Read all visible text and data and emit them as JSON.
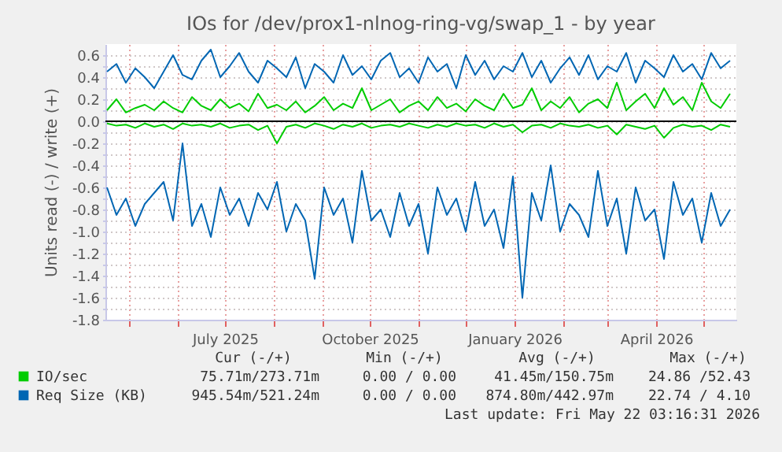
{
  "chart_data": {
    "type": "line",
    "title": "IOs for /dev/prox1-nlnog-ring-vg/swap_1 - by year",
    "ylabel": "Units read (-) / write (+)",
    "x": [
      "2025-04-17",
      "2025-04-23",
      "2025-04-29",
      "2025-05-05",
      "2025-05-11",
      "2025-05-17",
      "2025-05-23",
      "2025-05-29",
      "2025-06-04",
      "2025-06-10",
      "2025-06-16",
      "2025-06-22",
      "2025-06-28",
      "2025-07-04",
      "2025-07-10",
      "2025-07-16",
      "2025-07-22",
      "2025-07-28",
      "2025-08-03",
      "2025-08-09",
      "2025-08-15",
      "2025-08-21",
      "2025-08-27",
      "2025-09-02",
      "2025-09-08",
      "2025-09-14",
      "2025-09-20",
      "2025-09-26",
      "2025-10-02",
      "2025-10-08",
      "2025-10-14",
      "2025-10-20",
      "2025-10-26",
      "2025-11-01",
      "2025-11-07",
      "2025-11-13",
      "2025-11-19",
      "2025-11-25",
      "2025-12-01",
      "2025-12-07",
      "2025-12-13",
      "2025-12-19",
      "2025-12-25",
      "2025-12-31",
      "2026-01-06",
      "2026-01-12",
      "2026-01-18",
      "2026-01-24",
      "2026-01-30",
      "2026-02-05",
      "2026-02-11",
      "2026-02-17",
      "2026-02-23",
      "2026-03-01",
      "2026-03-07",
      "2026-03-13",
      "2026-03-19",
      "2026-03-25",
      "2026-03-31",
      "2026-04-06",
      "2026-04-12",
      "2026-04-18",
      "2026-04-24",
      "2026-04-30",
      "2026-05-06",
      "2026-05-12",
      "2026-05-18"
    ],
    "series": [
      {
        "name": "IO/sec",
        "color": "#00cc00",
        "values": [
          0.1,
          0.2,
          0.08,
          0.12,
          0.15,
          0.1,
          0.18,
          0.12,
          0.08,
          0.22,
          0.14,
          0.1,
          0.2,
          0.12,
          0.16,
          0.09,
          0.25,
          0.12,
          0.15,
          0.1,
          0.18,
          0.08,
          0.14,
          0.22,
          0.1,
          0.16,
          0.12,
          0.3,
          0.1,
          0.15,
          0.2,
          0.08,
          0.14,
          0.18,
          0.1,
          0.22,
          0.12,
          0.16,
          0.09,
          0.2,
          0.14,
          0.1,
          0.25,
          0.12,
          0.15,
          0.3,
          0.1,
          0.18,
          0.12,
          0.22,
          0.08,
          0.16,
          0.2,
          0.12,
          0.35,
          0.1,
          0.18,
          0.25,
          0.12,
          0.3,
          0.15,
          0.22,
          0.1,
          0.35,
          0.18,
          0.12,
          0.25
        ]
      },
      {
        "color": "#00cc00",
        "values": [
          -0.02,
          -0.04,
          -0.03,
          -0.06,
          -0.02,
          -0.05,
          -0.03,
          -0.07,
          -0.02,
          -0.04,
          -0.03,
          -0.05,
          -0.02,
          -0.06,
          -0.04,
          -0.03,
          -0.08,
          -0.04,
          -0.2,
          -0.05,
          -0.03,
          -0.06,
          -0.02,
          -0.04,
          -0.07,
          -0.03,
          -0.05,
          -0.02,
          -0.06,
          -0.04,
          -0.03,
          -0.05,
          -0.02,
          -0.04,
          -0.06,
          -0.03,
          -0.05,
          -0.02,
          -0.04,
          -0.03,
          -0.06,
          -0.02,
          -0.05,
          -0.03,
          -0.1,
          -0.04,
          -0.03,
          -0.06,
          -0.02,
          -0.04,
          -0.05,
          -0.03,
          -0.06,
          -0.04,
          -0.12,
          -0.03,
          -0.05,
          -0.07,
          -0.04,
          -0.15,
          -0.06,
          -0.03,
          -0.05,
          -0.04,
          -0.08,
          -0.03,
          -0.05
        ]
      },
      {
        "name": "Req Size (KB)",
        "color": "#0066b3",
        "values": [
          0.45,
          0.52,
          0.35,
          0.48,
          0.4,
          0.3,
          0.45,
          0.6,
          0.42,
          0.38,
          0.55,
          0.65,
          0.4,
          0.5,
          0.62,
          0.45,
          0.35,
          0.55,
          0.48,
          0.4,
          0.58,
          0.3,
          0.52,
          0.45,
          0.35,
          0.6,
          0.42,
          0.5,
          0.38,
          0.55,
          0.62,
          0.4,
          0.48,
          0.35,
          0.58,
          0.45,
          0.52,
          0.3,
          0.6,
          0.42,
          0.55,
          0.38,
          0.5,
          0.45,
          0.62,
          0.4,
          0.55,
          0.35,
          0.48,
          0.58,
          0.42,
          0.6,
          0.38,
          0.5,
          0.45,
          0.62,
          0.35,
          0.55,
          0.48,
          0.4,
          0.6,
          0.45,
          0.52,
          0.38,
          0.62,
          0.48,
          0.55
        ]
      },
      {
        "color": "#0066b3",
        "values": [
          -0.6,
          -0.85,
          -0.7,
          -0.95,
          -0.75,
          -0.65,
          -0.55,
          -0.9,
          -0.2,
          -0.95,
          -0.75,
          -1.05,
          -0.6,
          -0.85,
          -0.7,
          -0.95,
          -0.65,
          -0.8,
          -0.55,
          -1.0,
          -0.75,
          -0.9,
          -1.43,
          -0.6,
          -0.85,
          -0.7,
          -1.1,
          -0.45,
          -0.9,
          -0.8,
          -1.05,
          -0.65,
          -0.95,
          -0.75,
          -1.2,
          -0.6,
          -0.85,
          -0.7,
          -1.0,
          -0.55,
          -0.95,
          -0.8,
          -1.15,
          -0.5,
          -1.6,
          -0.65,
          -0.9,
          -0.4,
          -1.0,
          -0.75,
          -0.85,
          -1.05,
          -0.45,
          -0.95,
          -0.7,
          -1.2,
          -0.6,
          -0.9,
          -0.8,
          -1.25,
          -0.55,
          -0.85,
          -0.7,
          -1.1,
          -0.65,
          -0.95,
          -0.8
        ]
      }
    ],
    "xlim": [
      "2025-04-16",
      "2026-05-22"
    ],
    "xticks": [
      {
        "value": "2025-05-01",
        "label": null
      },
      {
        "value": "2025-06-01",
        "label": null
      },
      {
        "value": "2025-07-01",
        "label": "July 2025"
      },
      {
        "value": "2025-08-01",
        "label": null
      },
      {
        "value": "2025-09-01",
        "label": null
      },
      {
        "value": "2025-10-01",
        "label": "October 2025"
      },
      {
        "value": "2025-11-01",
        "label": null
      },
      {
        "value": "2025-12-01",
        "label": null
      },
      {
        "value": "2026-01-01",
        "label": "January 2026"
      },
      {
        "value": "2026-02-01",
        "label": null
      },
      {
        "value": "2026-03-01",
        "label": null
      },
      {
        "value": "2026-04-01",
        "label": "April 2026"
      },
      {
        "value": "2026-05-01",
        "label": null
      }
    ],
    "ylim": [
      -1.8,
      0.7
    ],
    "yticks": [
      0.6,
      {
        "value": 0.5,
        "label": null
      },
      0.4,
      {
        "value": 0.3,
        "label": null
      },
      0.2,
      {
        "value": 0.1,
        "label": null
      },
      {
        "value": 0,
        "label": "0.0"
      },
      {
        "value": -0.1,
        "label": null
      },
      -0.2,
      {
        "value": -0.3,
        "label": null
      },
      -0.4,
      {
        "value": -0.5,
        "label": null
      },
      -0.6,
      {
        "value": -0.7,
        "label": null
      },
      -0.8,
      {
        "value": -0.9,
        "label": null
      },
      {
        "value": -1,
        "label": "-1.0"
      },
      {
        "value": -1.1,
        "label": null
      },
      -1.2,
      {
        "value": -1.3,
        "label": null
      },
      -1.4,
      {
        "value": -1.5,
        "label": null
      },
      -1.6,
      {
        "value": -1.7,
        "label": null
      },
      -1.8
    ],
    "grid": true,
    "legend": "bottom",
    "ref_lines": [
      {
        "axis": "y",
        "value": 0,
        "color": "#000000"
      }
    ],
    "annotations": [
      "Cur (-/+)",
      "Min (-/+)",
      "Avg (-/+)",
      "Max (-/+)",
      "75.71m/273.71m",
      "0.00 / 0.00",
      "41.45m/150.75m",
      "24.86 /52.43",
      "945.54m/521.24m",
      "0.00 / 0.00",
      "874.80m/442.97m",
      "22.74 / 4.10",
      "Last update: Fri May 22 03:16:31 2026"
    ]
  }
}
